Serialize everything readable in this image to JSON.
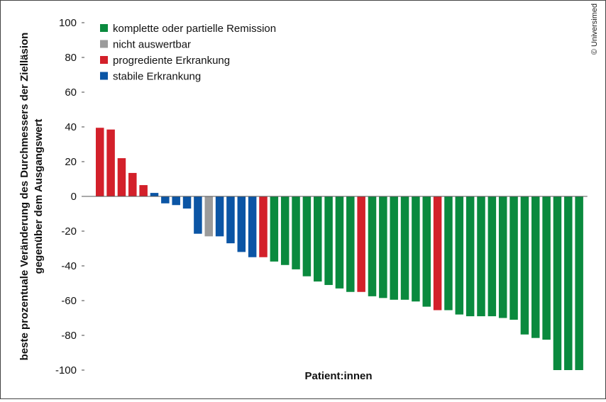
{
  "credit": "© Universimed",
  "chart_data": {
    "type": "bar",
    "title": "",
    "xlabel": "Patient:innen",
    "ylabel_lines": [
      "beste prozentuale Veränderung des Durchmessers der Zielläsion",
      "gegenüber dem Ausgangswert"
    ],
    "ylim": [
      -100,
      100
    ],
    "yticks": [
      100,
      80,
      60,
      40,
      20,
      0,
      -20,
      -40,
      -60,
      -80,
      -100
    ],
    "grid": false,
    "legend_position": "top-left",
    "legend": [
      {
        "key": "CR_PR",
        "label": "komplette oder partielle Remission",
        "color": "#0a8a3e"
      },
      {
        "key": "NE",
        "label": "nicht auswertbar",
        "color": "#9b9b9b"
      },
      {
        "key": "PD",
        "label": "progrediente Erkrankung",
        "color": "#d3202a"
      },
      {
        "key": "SD",
        "label": "stabile Erkrankung",
        "color": "#0b55a5"
      }
    ],
    "bars": [
      {
        "value": 39.5,
        "category": "PD"
      },
      {
        "value": 38.5,
        "category": "PD"
      },
      {
        "value": 22,
        "category": "PD"
      },
      {
        "value": 13.5,
        "category": "PD"
      },
      {
        "value": 6.5,
        "category": "PD"
      },
      {
        "value": 2,
        "category": "SD"
      },
      {
        "value": -4,
        "category": "SD"
      },
      {
        "value": -5,
        "category": "SD"
      },
      {
        "value": -7,
        "category": "SD"
      },
      {
        "value": -21.5,
        "category": "SD"
      },
      {
        "value": -23,
        "category": "NE"
      },
      {
        "value": -23,
        "category": "SD"
      },
      {
        "value": -27,
        "category": "SD"
      },
      {
        "value": -32,
        "category": "SD"
      },
      {
        "value": -35,
        "category": "SD"
      },
      {
        "value": -35,
        "category": "PD"
      },
      {
        "value": -37.5,
        "category": "CR_PR"
      },
      {
        "value": -39.5,
        "category": "CR_PR"
      },
      {
        "value": -42,
        "category": "CR_PR"
      },
      {
        "value": -46,
        "category": "CR_PR"
      },
      {
        "value": -49,
        "category": "CR_PR"
      },
      {
        "value": -51,
        "category": "CR_PR"
      },
      {
        "value": -53,
        "category": "CR_PR"
      },
      {
        "value": -55,
        "category": "CR_PR"
      },
      {
        "value": -55,
        "category": "PD"
      },
      {
        "value": -57.5,
        "category": "CR_PR"
      },
      {
        "value": -58.5,
        "category": "CR_PR"
      },
      {
        "value": -59.5,
        "category": "CR_PR"
      },
      {
        "value": -59.5,
        "category": "CR_PR"
      },
      {
        "value": -60.5,
        "category": "CR_PR"
      },
      {
        "value": -63.5,
        "category": "CR_PR"
      },
      {
        "value": -65.5,
        "category": "PD"
      },
      {
        "value": -65.5,
        "category": "CR_PR"
      },
      {
        "value": -68,
        "category": "CR_PR"
      },
      {
        "value": -69,
        "category": "CR_PR"
      },
      {
        "value": -69,
        "category": "CR_PR"
      },
      {
        "value": -69,
        "category": "CR_PR"
      },
      {
        "value": -70,
        "category": "CR_PR"
      },
      {
        "value": -71,
        "category": "CR_PR"
      },
      {
        "value": -79.5,
        "category": "CR_PR"
      },
      {
        "value": -81.5,
        "category": "CR_PR"
      },
      {
        "value": -82.5,
        "category": "CR_PR"
      },
      {
        "value": -100,
        "category": "CR_PR"
      },
      {
        "value": -100,
        "category": "CR_PR"
      },
      {
        "value": -100,
        "category": "CR_PR"
      }
    ]
  }
}
